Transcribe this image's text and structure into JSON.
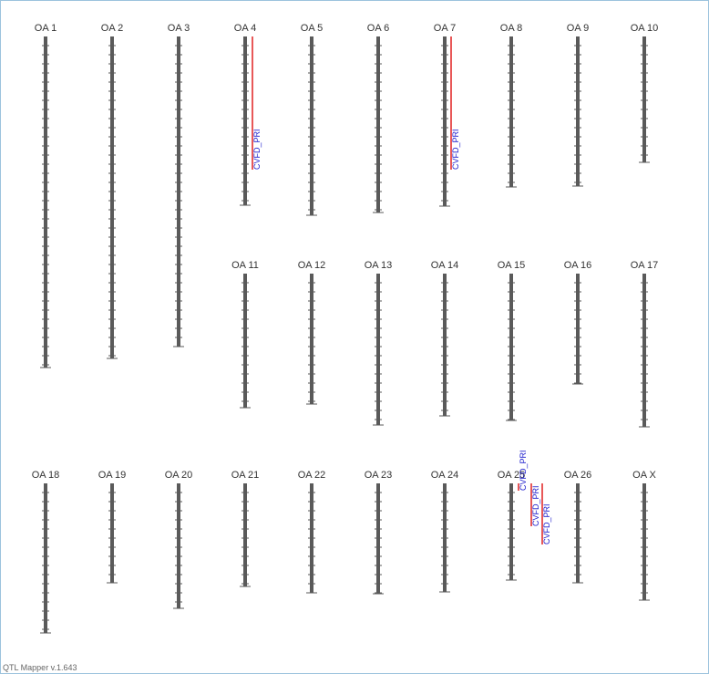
{
  "chromosomes": [
    "OA 1",
    "OA 2",
    "OA 3",
    "OA 4",
    "OA 5",
    "OA 6",
    "OA 7",
    "OA 8",
    "OA 9",
    "OA 10",
    "OA 11",
    "OA 12",
    "OA 13",
    "OA 14",
    "OA 15",
    "OA 16",
    "OA 17",
    "OA 18",
    "OA 19",
    "OA 20",
    "OA 21",
    "OA 22",
    "OA 23",
    "OA 24",
    "OA 25",
    "OA 26",
    "OA X"
  ],
  "qtls": [
    "CVFD_PRI",
    "CVFD_PRI",
    "CVFD_PRI",
    "CVFD_PRI",
    "CVFD_PRI"
  ],
  "footer": "QTL Mapper v.1.643"
}
